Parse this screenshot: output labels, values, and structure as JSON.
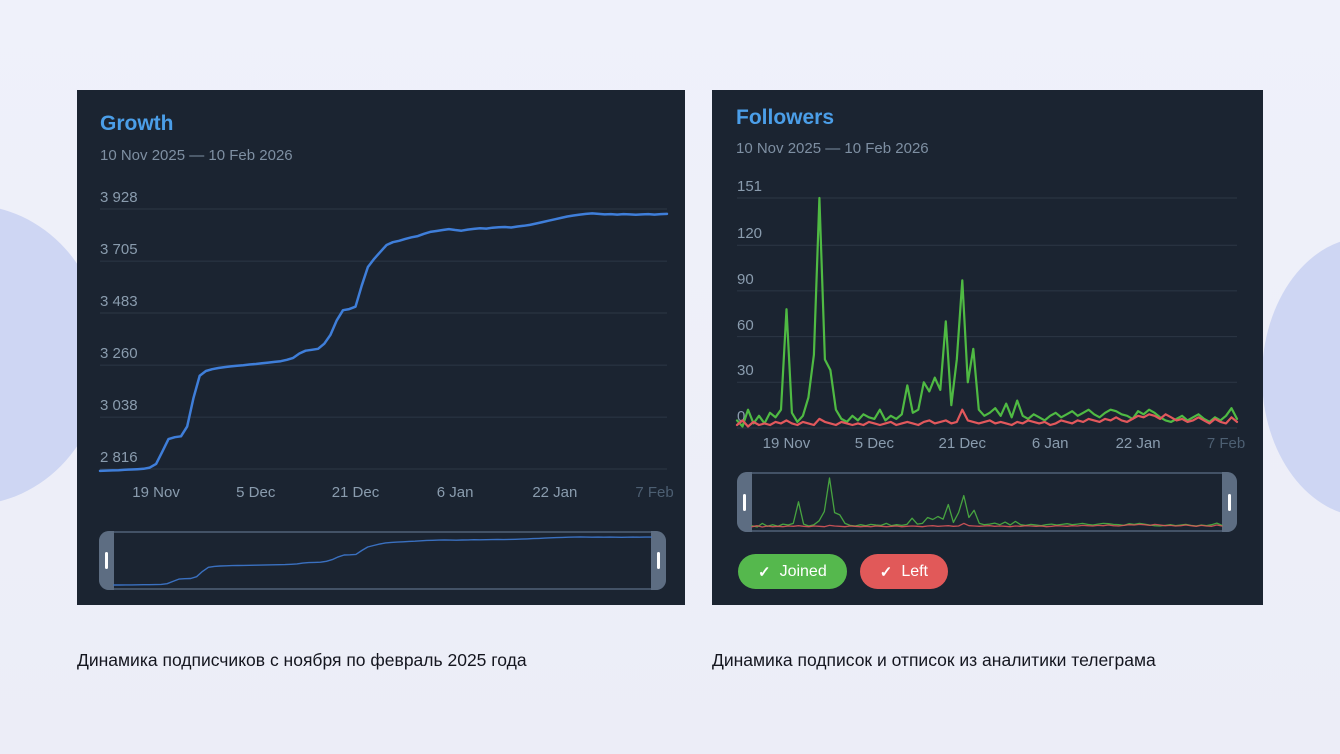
{
  "page": {
    "captions": {
      "left": "Динамика подписчиков с ноября по февраль 2025 года",
      "right": "Динамика подписок и отписок из аналитики телеграма"
    },
    "colors": {
      "background": "#edeff9",
      "blob": "#ced6f3",
      "panel": "#1b2431",
      "title_blue": "#4b9ee8"
    }
  },
  "chart_data": [
    {
      "type": "line",
      "title": "Growth",
      "date_range": "10 Nov 2025 — 10 Feb 2026",
      "ylim": [
        2816,
        3928
      ],
      "y_ticks": [
        2816,
        3038,
        3260,
        3483,
        3705,
        3928
      ],
      "y_tick_labels": [
        "2 816",
        "3 038",
        "3 260",
        "3 483",
        "3 705",
        "3 928"
      ],
      "x_tick_labels": [
        "19 Nov",
        "5 Dec",
        "21 Dec",
        "6 Jan",
        "22 Jan",
        "7 Feb"
      ],
      "x_tick_days": [
        9,
        25,
        41,
        57,
        73,
        89
      ],
      "n_points": 92,
      "grid": true,
      "legend_position": "none",
      "has_minimap": true,
      "series": [
        {
          "color": "#3f7ed9",
          "values": [
            2808,
            2809,
            2810,
            2811,
            2813,
            2814,
            2815,
            2817,
            2822,
            2838,
            2890,
            2944,
            2952,
            2956,
            2998,
            3120,
            3215,
            3235,
            3243,
            3248,
            3252,
            3255,
            3258,
            3260,
            3263,
            3265,
            3268,
            3271,
            3274,
            3277,
            3283,
            3291,
            3310,
            3322,
            3326,
            3330,
            3352,
            3390,
            3452,
            3495,
            3500,
            3510,
            3600,
            3680,
            3715,
            3745,
            3774,
            3786,
            3792,
            3800,
            3807,
            3812,
            3822,
            3830,
            3834,
            3838,
            3842,
            3838,
            3835,
            3840,
            3843,
            3846,
            3844,
            3848,
            3850,
            3851,
            3849,
            3853,
            3856,
            3860,
            3866,
            3872,
            3878,
            3884,
            3890,
            3896,
            3900,
            3904,
            3907,
            3909,
            3907,
            3905,
            3906,
            3904,
            3906,
            3905,
            3903,
            3905,
            3906,
            3904,
            3906,
            3907
          ]
        }
      ]
    },
    {
      "type": "line",
      "title": "Followers",
      "date_range": "10 Nov 2025 — 10 Feb 2026",
      "ylim": [
        0,
        151
      ],
      "y_ticks": [
        0,
        30,
        60,
        90,
        120,
        151
      ],
      "y_tick_labels": [
        "0",
        "30",
        "60",
        "90",
        "120",
        "151"
      ],
      "x_tick_labels": [
        "19 Nov",
        "5 Dec",
        "21 Dec",
        "6 Jan",
        "22 Jan",
        "7 Feb"
      ],
      "x_tick_days": [
        9,
        25,
        41,
        57,
        73,
        89
      ],
      "n_points": 92,
      "grid": true,
      "legend_position": "bottom",
      "has_minimap": true,
      "legend": [
        {
          "label": "Joined",
          "color": "#55b84d",
          "icon": "check"
        },
        {
          "label": "Left",
          "color": "#e15959",
          "icon": "check"
        }
      ],
      "series": [
        {
          "name": "Joined",
          "color": "#4fba43",
          "values": [
            5,
            1,
            12,
            3,
            8,
            3,
            10,
            7,
            12,
            78,
            10,
            4,
            8,
            20,
            48,
            151,
            45,
            38,
            12,
            6,
            4,
            8,
            5,
            9,
            7,
            6,
            12,
            5,
            8,
            6,
            9,
            28,
            10,
            12,
            30,
            24,
            33,
            25,
            70,
            15,
            45,
            97,
            30,
            52,
            12,
            8,
            10,
            13,
            8,
            16,
            7,
            18,
            8,
            6,
            9,
            7,
            5,
            8,
            10,
            7,
            9,
            11,
            8,
            10,
            12,
            9,
            7,
            10,
            12,
            11,
            9,
            8,
            6,
            11,
            9,
            12,
            10,
            7,
            5,
            4,
            6,
            8,
            5,
            7,
            9,
            6,
            4,
            7,
            5,
            8,
            13,
            6
          ]
        },
        {
          "name": "Left",
          "color": "#e2585c",
          "values": [
            2,
            5,
            1,
            4,
            2,
            3,
            2,
            4,
            3,
            5,
            3,
            2,
            4,
            3,
            2,
            6,
            4,
            3,
            2,
            4,
            3,
            2,
            3,
            2,
            4,
            3,
            2,
            3,
            4,
            2,
            3,
            4,
            3,
            2,
            4,
            5,
            3,
            4,
            5,
            3,
            4,
            12,
            5,
            4,
            3,
            4,
            5,
            3,
            4,
            3,
            2,
            4,
            3,
            5,
            4,
            3,
            4,
            2,
            3,
            5,
            4,
            3,
            5,
            4,
            6,
            5,
            4,
            6,
            5,
            7,
            5,
            4,
            6,
            8,
            7,
            9,
            8,
            6,
            9,
            7,
            5,
            6,
            4,
            5,
            7,
            5,
            3,
            6,
            4,
            3,
            7,
            4
          ]
        }
      ]
    }
  ]
}
